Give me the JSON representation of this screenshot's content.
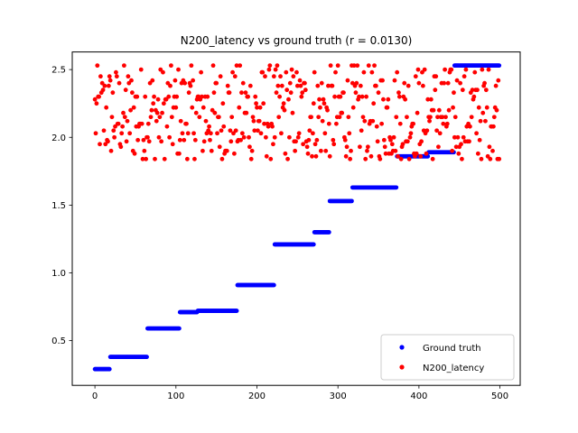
{
  "colors": {
    "ground_truth": "#0000ff",
    "latency": "#ff0000",
    "axes": "#000000",
    "background": "#ffffff",
    "legend_border": "#cccccc"
  },
  "chart_data": {
    "type": "scatter",
    "title": "N200_latency vs ground truth (r = 0.0130)",
    "xlabel": "",
    "ylabel": "",
    "xlim": [
      -28,
      525
    ],
    "ylim": [
      0.17,
      2.63
    ],
    "grid": false,
    "legend_position": "bottom-right",
    "x_ticks": [
      0,
      100,
      200,
      300,
      400,
      500
    ],
    "x_tick_labels": [
      "0",
      "100",
      "200",
      "300",
      "400",
      "500"
    ],
    "y_ticks": [
      0.5,
      1.0,
      1.5,
      2.0,
      2.5
    ],
    "y_tick_labels": [
      "0.5",
      "1.0",
      "1.5",
      "2.0",
      "2.5"
    ],
    "series": [
      {
        "name": "Ground truth",
        "color": "#0000ff",
        "marker": "circle",
        "segments": [
          {
            "x_start": 0,
            "x_end": 18,
            "y": 0.29
          },
          {
            "x_start": 19,
            "x_end": 64,
            "y": 0.38
          },
          {
            "x_start": 65,
            "x_end": 104,
            "y": 0.59
          },
          {
            "x_start": 105,
            "x_end": 126,
            "y": 0.71
          },
          {
            "x_start": 127,
            "x_end": 175,
            "y": 0.72
          },
          {
            "x_start": 176,
            "x_end": 221,
            "y": 0.91
          },
          {
            "x_start": 222,
            "x_end": 270,
            "y": 1.21
          },
          {
            "x_start": 271,
            "x_end": 289,
            "y": 1.3
          },
          {
            "x_start": 290,
            "x_end": 317,
            "y": 1.53
          },
          {
            "x_start": 318,
            "x_end": 372,
            "y": 1.63
          },
          {
            "x_start": 373,
            "x_end": 411,
            "y": 1.86
          },
          {
            "x_start": 412,
            "x_end": 443,
            "y": 1.89
          },
          {
            "x_start": 444,
            "x_end": 499,
            "y": 2.53
          }
        ]
      },
      {
        "name": "N200_latency",
        "color": "#ff0000",
        "marker": "circle",
        "n_points": 500,
        "x_range": [
          0,
          499
        ],
        "y_values_observed": [
          1.84,
          1.86,
          1.88,
          1.9,
          1.93,
          1.95,
          1.97,
          1.98,
          2.0,
          2.03,
          2.05,
          2.08,
          2.1,
          2.12,
          2.15,
          2.18,
          2.2,
          2.22,
          2.25,
          2.28,
          2.3,
          2.33,
          2.35,
          2.38,
          2.4,
          2.42,
          2.45,
          2.48,
          2.5,
          2.53
        ],
        "y_range": [
          1.84,
          2.53
        ]
      }
    ]
  }
}
